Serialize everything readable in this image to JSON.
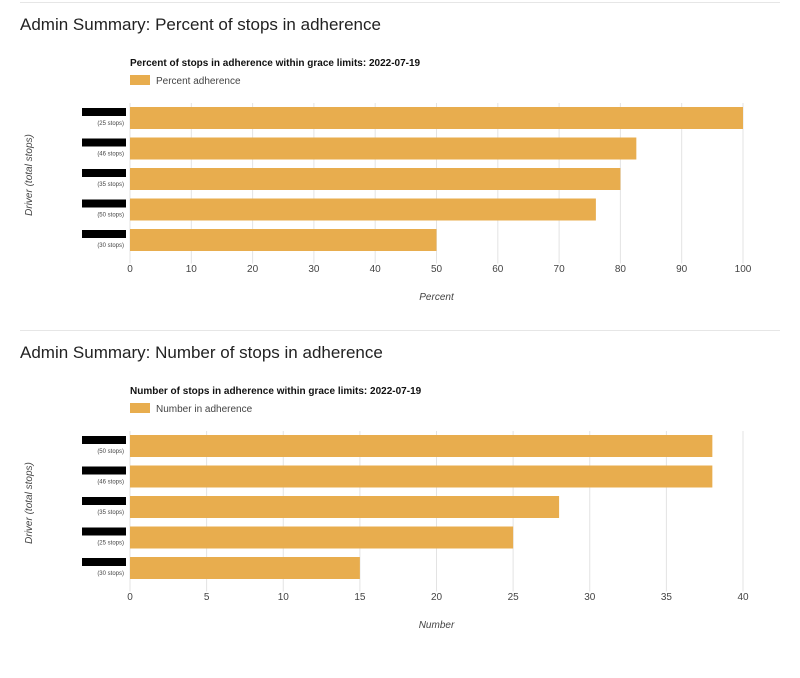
{
  "colors": {
    "bar": "#E8AD4E",
    "grid": "#e3e3e3",
    "axis_text": "#444444",
    "title_text": "#111111",
    "redaction": "#000000"
  },
  "sections": [
    {
      "heading": "Admin Summary: Percent of stops in adherence",
      "chart_data": {
        "type": "bar",
        "orientation": "horizontal",
        "title": "Percent of stops in adherence within grace limits: 2022-07-19",
        "legend": {
          "label": "Percent adherence",
          "position": "top-left"
        },
        "categories": [
          "(25 stops)",
          "(46 stops)",
          "(35 stops)",
          "(50 stops)",
          "(30 stops)"
        ],
        "values": [
          100,
          82.6,
          80,
          76,
          50
        ],
        "xlabel": "Percent",
        "ylabel": "Driver (total stops)",
        "xlim": [
          0,
          100
        ],
        "xticks": [
          "0",
          "10",
          "20",
          "30",
          "40",
          "50",
          "60",
          "70",
          "80",
          "90",
          "100"
        ],
        "grid": true,
        "driver_names_redacted": true
      }
    },
    {
      "heading": "Admin Summary: Number of stops in adherence",
      "chart_data": {
        "type": "bar",
        "orientation": "horizontal",
        "title": "Number of stops in adherence within grace limits: 2022-07-19",
        "legend": {
          "label": "Number in adherence",
          "position": "top-left"
        },
        "categories": [
          "(50 stops)",
          "(46 stops)",
          "(35 stops)",
          "(25 stops)",
          "(30 stops)"
        ],
        "values": [
          38,
          38,
          28,
          25,
          15
        ],
        "xlabel": "Number",
        "ylabel": "Driver (total stops)",
        "xlim": [
          0,
          40
        ],
        "xticks": [
          "0",
          "5",
          "10",
          "15",
          "20",
          "25",
          "30",
          "35",
          "40"
        ],
        "grid": true,
        "driver_names_redacted": true
      }
    }
  ]
}
